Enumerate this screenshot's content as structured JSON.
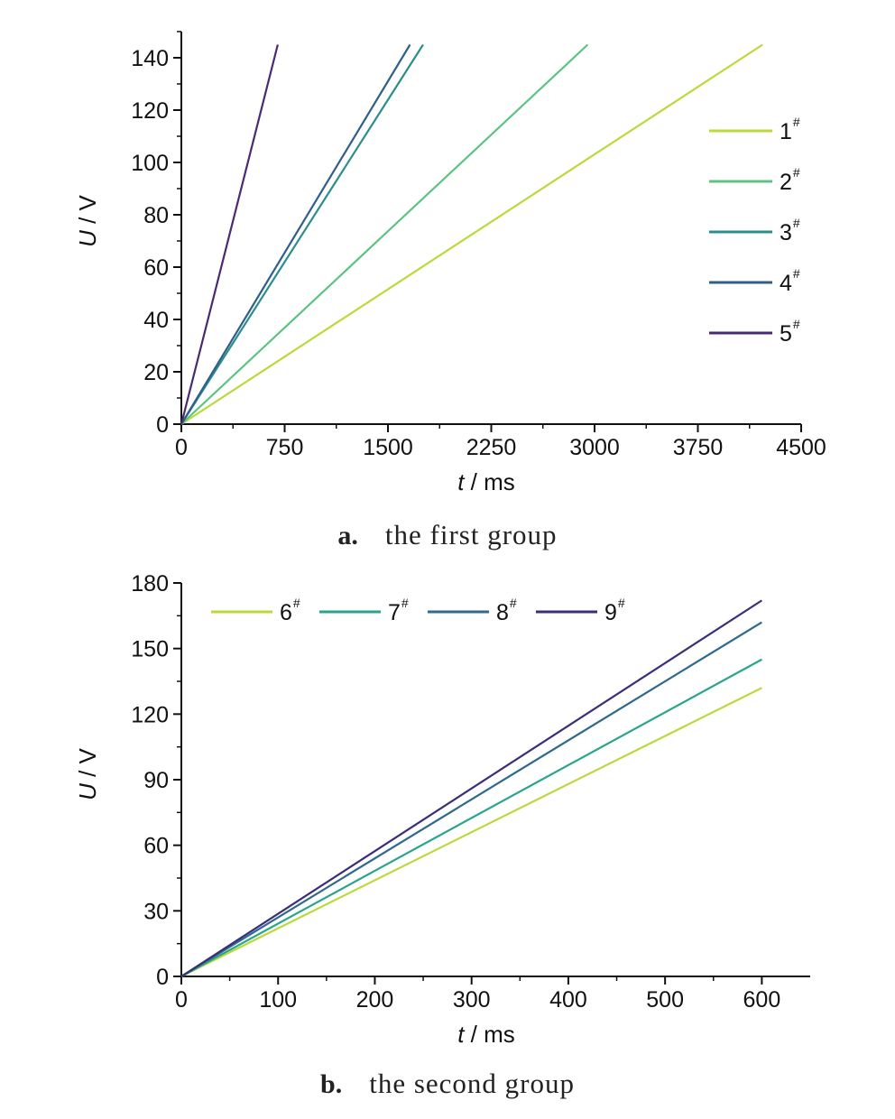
{
  "chart_data": [
    {
      "type": "line",
      "caption_letter": "a.",
      "caption_text": "the first group",
      "xlabel_var": "t",
      "xlabel_unit": " / ms",
      "ylabel_var": "U",
      "ylabel_unit": " / V",
      "xlim": [
        0,
        4500
      ],
      "ylim": [
        0,
        150
      ],
      "xticks": [
        0,
        750,
        1500,
        2250,
        3000,
        3750,
        4500
      ],
      "yticks": [
        0,
        20,
        40,
        60,
        80,
        100,
        120,
        140
      ],
      "legend_position": "right",
      "legend_layout": "vertical",
      "legend_superscript": "#",
      "series": [
        {
          "name": "1",
          "color": "#bada3a",
          "x": [
            0,
            4220
          ],
          "y": [
            0,
            145
          ]
        },
        {
          "name": "2",
          "color": "#5cc480",
          "x": [
            0,
            2950
          ],
          "y": [
            0,
            145
          ]
        },
        {
          "name": "3",
          "color": "#2a8f8c",
          "x": [
            0,
            1755
          ],
          "y": [
            0,
            145
          ]
        },
        {
          "name": "4",
          "color": "#2f5f8a",
          "x": [
            0,
            1660
          ],
          "y": [
            0,
            145
          ]
        },
        {
          "name": "5",
          "color": "#4a2a72",
          "x": [
            0,
            700
          ],
          "y": [
            0,
            145
          ]
        }
      ]
    },
    {
      "type": "line",
      "caption_letter": "b.",
      "caption_text": "the second group",
      "xlabel_var": "t",
      "xlabel_unit": " / ms",
      "ylabel_var": "U",
      "ylabel_unit": " / V",
      "xlim": [
        0,
        650
      ],
      "ylim": [
        0,
        180
      ],
      "xticks": [
        0,
        100,
        200,
        300,
        400,
        500,
        600
      ],
      "yticks": [
        0,
        30,
        60,
        90,
        120,
        150,
        180
      ],
      "legend_position": "top-left",
      "legend_layout": "horizontal",
      "legend_superscript": "#",
      "series": [
        {
          "name": "6",
          "color": "#bada3a",
          "x": [
            0,
            600
          ],
          "y": [
            0,
            132
          ]
        },
        {
          "name": "7",
          "color": "#2aa58a",
          "x": [
            0,
            600
          ],
          "y": [
            0,
            145
          ]
        },
        {
          "name": "8",
          "color": "#2f6a8c",
          "x": [
            0,
            600
          ],
          "y": [
            0,
            162
          ]
        },
        {
          "name": "9",
          "color": "#3b2d78",
          "x": [
            0,
            600
          ],
          "y": [
            0,
            172
          ]
        }
      ]
    }
  ]
}
